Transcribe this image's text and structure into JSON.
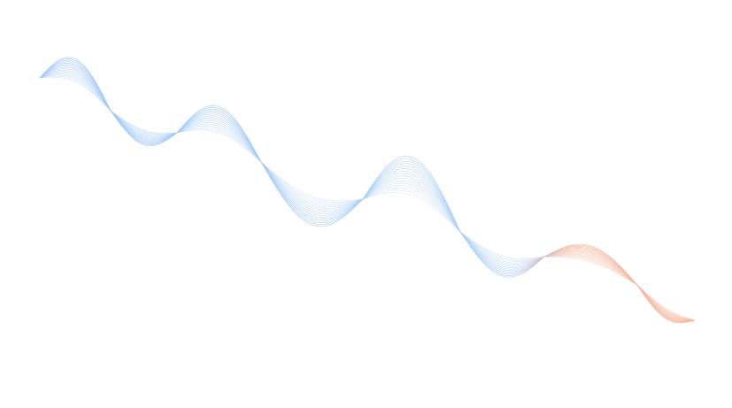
{
  "artwork": {
    "kind": "abstract flowing line wave",
    "colors": {
      "background": "#ffffff",
      "start": "#9cc4f5",
      "middle": "#a9cff2",
      "end": "#f4b49a"
    }
  }
}
